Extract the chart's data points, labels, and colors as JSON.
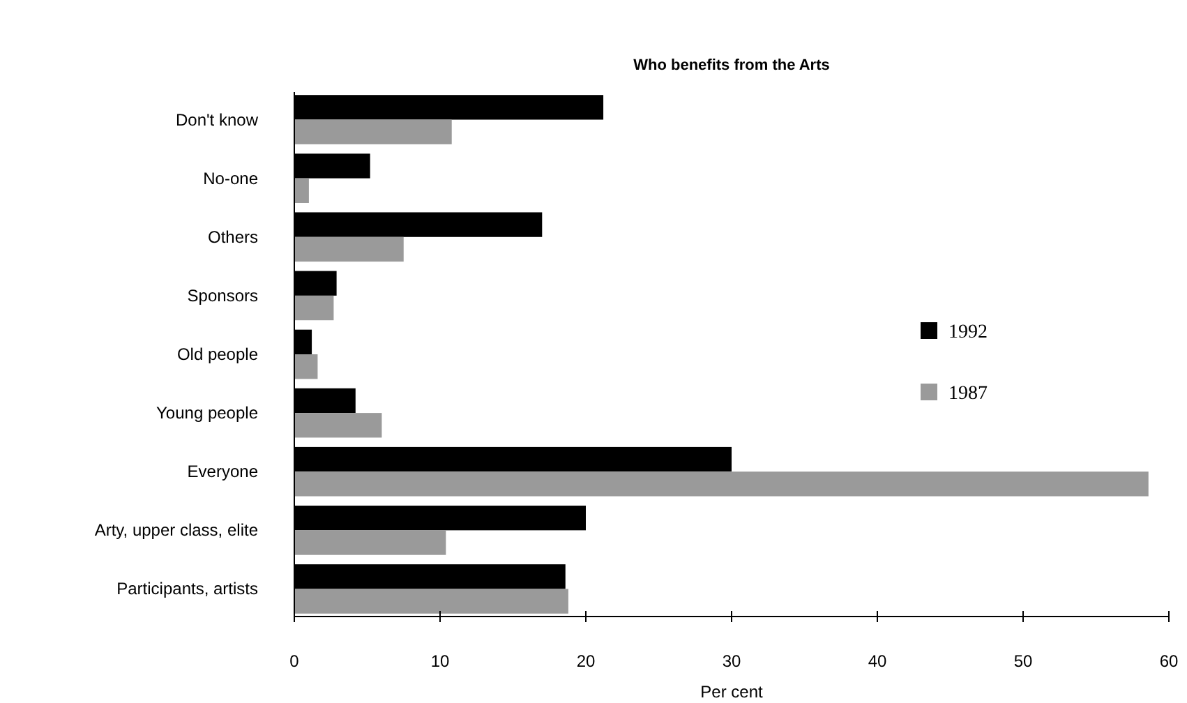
{
  "chart_data": {
    "type": "bar",
    "orientation": "horizontal",
    "title": "Who benefits from the Arts",
    "xlabel": "Per cent",
    "categories": [
      "Don't know",
      "No-one",
      "Others",
      "Sponsors",
      "Old people",
      "Young people",
      "Everyone",
      "Arty, upper class, elite",
      "Participants, artists"
    ],
    "series": [
      {
        "name": "1992",
        "color": "#000000",
        "values": [
          21.2,
          5.2,
          17.0,
          2.9,
          1.2,
          4.2,
          30.0,
          20.0,
          18.6
        ]
      },
      {
        "name": "1987",
        "color": "#9a9a9a",
        "values": [
          10.8,
          1.0,
          7.5,
          2.7,
          1.6,
          6.0,
          58.6,
          10.4,
          18.8
        ]
      }
    ],
    "xlim": [
      0,
      60
    ],
    "xticks": [
      0,
      10,
      20,
      30,
      40,
      50,
      60
    ],
    "grid": false,
    "legend": "right"
  }
}
